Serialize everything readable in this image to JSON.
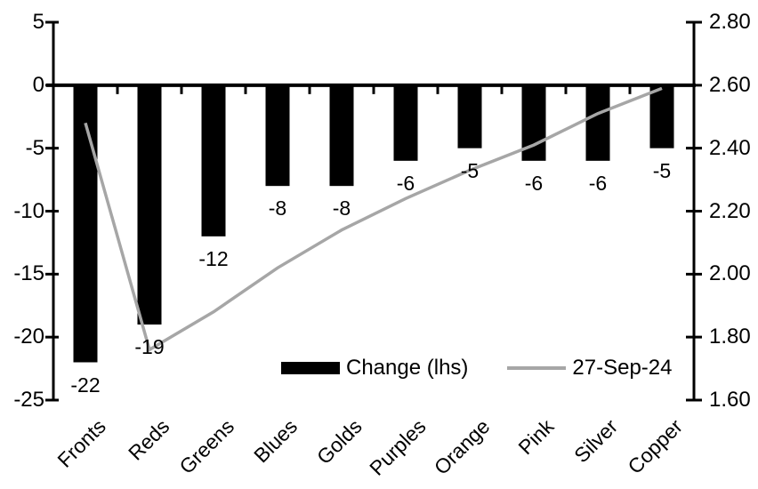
{
  "colors": {
    "background": "#ffffff",
    "bar": "#000000",
    "line": "#a6a6a6",
    "axis": "#000000",
    "text": "#000000"
  },
  "legend": {
    "bar_label": "Change (lhs)",
    "line_label": "27-Sep-24"
  },
  "chart_data": {
    "type": "bar",
    "subtype": "bar-and-line-dual-axis",
    "title": "",
    "xlabel": "",
    "ylabel_left": "",
    "ylabel_right": "",
    "grid": false,
    "legend_position": "inside-bottom",
    "categories": [
      "Fronts",
      "Reds",
      "Greens",
      "Blues",
      "Golds",
      "Purples",
      "Orange",
      "Pink",
      "Silver",
      "Copper"
    ],
    "series": [
      {
        "name": "Change (lhs)",
        "type": "bar",
        "axis": "left",
        "color": "#000000",
        "values": [
          -22,
          -19,
          -12,
          -8,
          -8,
          -6,
          -5,
          -6,
          -6,
          -5
        ]
      },
      {
        "name": "27-Sep-24",
        "type": "line",
        "axis": "right",
        "color": "#a6a6a6",
        "values": [
          2.48,
          1.76,
          1.88,
          2.02,
          2.14,
          2.24,
          2.33,
          2.41,
          2.51,
          2.59
        ]
      }
    ],
    "bar_data_labels": [
      "-22",
      "-19",
      "-12",
      "-8",
      "-8",
      "-6",
      "-5",
      "-6",
      "-6",
      "-5"
    ],
    "left_axis": {
      "min": -25,
      "max": 5,
      "step": 5,
      "tick_labels": [
        "5",
        "0",
        "-5",
        "-10",
        "-15",
        "-20",
        "-25"
      ]
    },
    "right_axis": {
      "min": 1.6,
      "max": 2.8,
      "step": 0.2,
      "tick_labels": [
        "2.80",
        "2.60",
        "2.40",
        "2.20",
        "2.00",
        "1.80",
        "1.60"
      ]
    }
  }
}
